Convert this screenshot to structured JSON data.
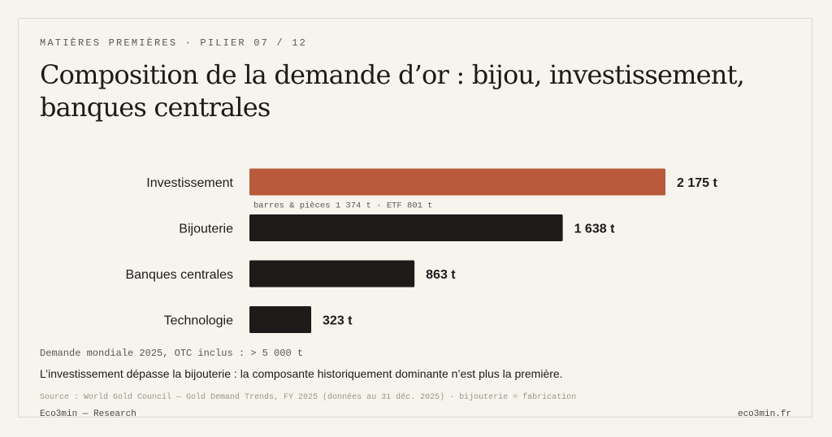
{
  "header": {
    "kicker": "MATIÈRES PREMIÈRES · PILIER 07 / 12",
    "title": "Composition de la demande d’or : bijou, investissement, banques centrales"
  },
  "chart_data": {
    "type": "bar",
    "orientation": "horizontal",
    "categories": [
      "Investissement",
      "Bijouterie",
      "Banques centrales",
      "Technologie"
    ],
    "values": [
      2175,
      1638,
      863,
      323
    ],
    "value_labels": [
      "2 175 t",
      "1 638 t",
      "863 t",
      "323 t"
    ],
    "unit": "t",
    "colors": [
      "#b85a3b",
      "#1c1b1a",
      "#1c1b1a",
      "#1c1b1a"
    ],
    "annotations": [
      {
        "category": "Investissement",
        "text": "barres & pièces 1 374 t · ETF 801 t"
      }
    ],
    "xlim": [
      0,
      2175
    ],
    "grid": false,
    "legend": "none"
  },
  "notes": {
    "total": "Demande mondiale 2025, OTC inclus : > 5 000 t",
    "takeaway": "L’investissement dépasse la bijouterie : la composante historiquement dominante n’est plus la première.",
    "source": "Source : World Gold Council — Gold Demand Trends, FY 2025 (données au 31 déc. 2025) · bijouterie = fabrication"
  },
  "footer": {
    "brand": "Eco3min — Research",
    "site": "eco3min.fr"
  }
}
